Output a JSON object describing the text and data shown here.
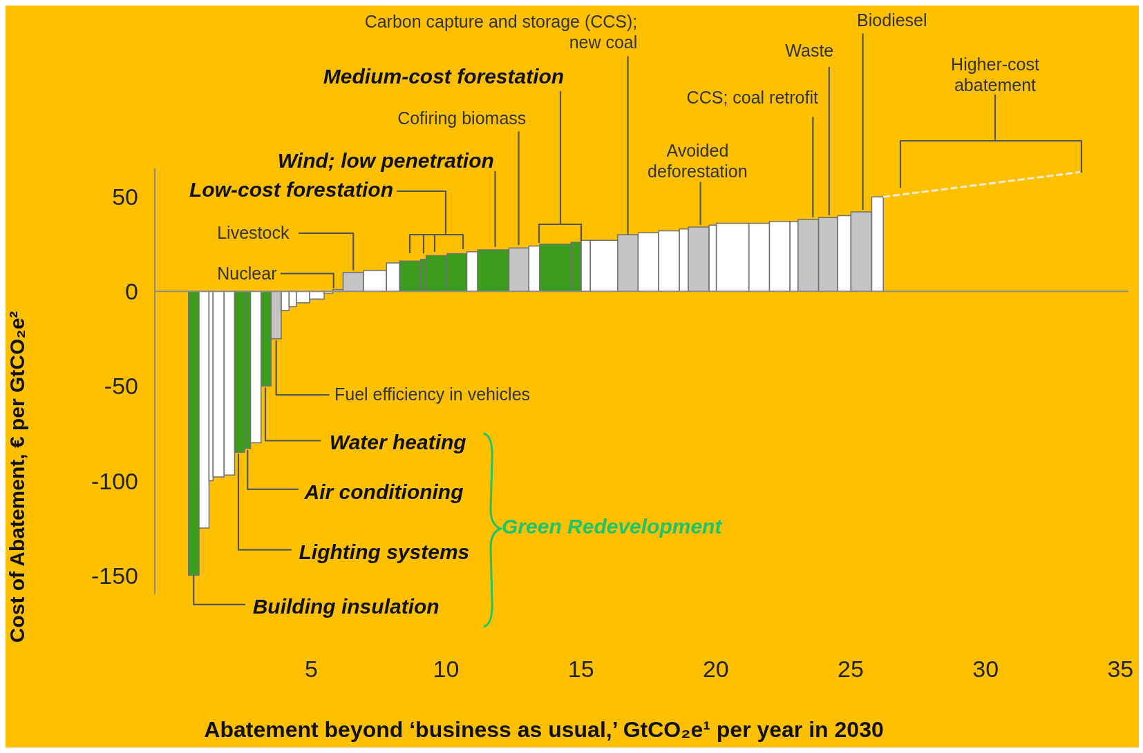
{
  "chart_data": {
    "type": "histogram",
    "xlabel": "Abatement beyond ‘business as usual,’ GtCO₂e¹ per year in 2030",
    "ylabel": "Cost of Abatement, € per GtCO₂e²",
    "bins": [
      0.45,
      0.84,
      1.21,
      1.36,
      1.77,
      2.16,
      2.53,
      2.75,
      3.14,
      3.51,
      3.89,
      4.18,
      4.45,
      4.94,
      5.48,
      5.8,
      6.18,
      6.94,
      7.79,
      8.28,
      9.06,
      9.26,
      10.04,
      10.77,
      11.17,
      12.33,
      13.07,
      13.47,
      14.63,
      15.01,
      15.35,
      16.36,
      17.12,
      17.88,
      18.65,
      18.98,
      19.75,
      20.02,
      21.23,
      21.99,
      22.75,
      23.05,
      23.81,
      24.52,
      25.01,
      25.78,
      26.21
    ],
    "values": [
      -150,
      -125,
      -100,
      -98,
      -97,
      -85,
      -83,
      -80,
      -50,
      -25,
      -10,
      -8,
      -6,
      -4,
      -1,
      1,
      10,
      11,
      15,
      16,
      17,
      19,
      20,
      21,
      22,
      23,
      24,
      25,
      26,
      27,
      27,
      30,
      31,
      32,
      33,
      34,
      35,
      36,
      36,
      37,
      37,
      38,
      39,
      40,
      42,
      50
    ],
    "colors": [
      "#3c9c1c",
      "#ffffff",
      "#ffffff",
      "#ffffff",
      "#ffffff",
      "#3c9c1c",
      "#3c9c1c",
      "#ffffff",
      "#3c9c1c",
      "#c4c4c4",
      "#ffffff",
      "#ffffff",
      "#ffffff",
      "#ffffff",
      "#ffffff",
      "#c4c4c4",
      "#c4c4c4",
      "#ffffff",
      "#ffffff",
      "#3c9c1c",
      "#3c9c1c",
      "#3c9c1c",
      "#3c9c1c",
      "#ffffff",
      "#3c9c1c",
      "#c4c4c4",
      "#ffffff",
      "#3c9c1c",
      "#3c9c1c",
      "#ffffff",
      "#ffffff",
      "#c4c4c4",
      "#ffffff",
      "#ffffff",
      "#ffffff",
      "#c4c4c4",
      "#ffffff",
      "#ffffff",
      "#ffffff",
      "#ffffff",
      "#ffffff",
      "#c4c4c4",
      "#c4c4c4",
      "#ffffff",
      "#c4c4c4",
      "#ffffff"
    ],
    "series": [
      {
        "type": "line",
        "x": [
          26.21,
          33.5
        ],
        "values": [
          50,
          63
        ],
        "color": "#f2ecd4",
        "line_style": "dashed"
      }
    ],
    "xlim": [
      -0.8,
      35.3
    ],
    "ylim": [
      -160,
      65
    ],
    "xticks": [
      5,
      10,
      15,
      20,
      25,
      30,
      35
    ],
    "yticks": [
      -150,
      -100,
      -50,
      0,
      50
    ],
    "ref_lines": [
      {
        "axis": "y",
        "value": 0,
        "color": "#8c8c8c"
      }
    ],
    "annotations": [
      {
        "text": "Carbon capture and storage (CCS); new coal",
        "x": 16.74,
        "y": 30
      },
      "Medium-cost forestation",
      {
        "text": "Cofiring biomass",
        "x": 12.69,
        "y": 23
      },
      {
        "text": "Wind; low penetration",
        "x": 11.82,
        "y": 22
      },
      "Low-cost forestation",
      {
        "text": "Livestock",
        "x": 6.56,
        "y": 10
      },
      {
        "text": "Nuclear",
        "x": 5.83,
        "y": 1
      },
      {
        "text": "Fuel efficiency in vehicles",
        "x": 3.7,
        "y": -25
      },
      {
        "text": "Water heating",
        "x": 3.3,
        "y": -50
      },
      {
        "text": "Air conditioning",
        "x": 2.64,
        "y": -83
      },
      {
        "text": "Lighting systems",
        "x": 2.3,
        "y": -85
      },
      {
        "text": "Building insulation",
        "x": 0.64,
        "y": -150
      },
      "Green Redevelopment",
      {
        "text": "Avoided deforestation",
        "x": 19.43,
        "y": 34
      },
      {
        "text": "CCS; coal retrofit",
        "x": 23.6,
        "y": 38
      },
      {
        "text": "Waste",
        "x": 24.2,
        "y": 39
      },
      {
        "text": "Biodiesel",
        "x": 25.45,
        "y": 42
      },
      "Higher-cost abatement"
    ]
  }
}
